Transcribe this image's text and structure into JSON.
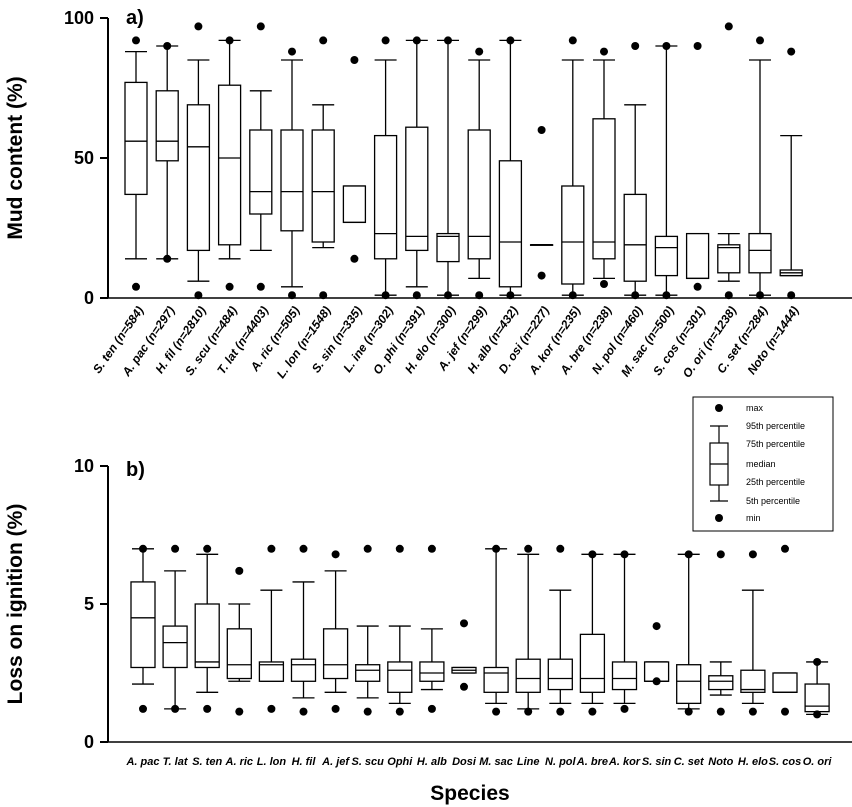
{
  "chart_data": [
    {
      "type": "box",
      "panel_label": "a)",
      "ylabel": "Mud content (%)",
      "xlabel": "",
      "ylim": [
        0,
        100
      ],
      "yticks": [
        "0",
        "50",
        "100"
      ],
      "categories": [
        "S. ten (n=584)",
        "A. pac (n=297)",
        "H. fil (n=2810)",
        "S. scu (n=484)",
        "T. lat (n=4403)",
        "A. ric (n=505)",
        "L. lon (n=1548)",
        "S. sin (n=335)",
        "L. ine (n=302)",
        "O. phi (n=391)",
        "H. elo (n=300)",
        "A. jef (n=299)",
        "H. alb (n=432)",
        "D. osi (n=227)",
        "A. kor (n=235)",
        "A. bre (n=238)",
        "N. pol (n=460)",
        "M. sac (n=500)",
        "S. cos (n=301)",
        "O. ori (n=1238)",
        "C. set (n=284)",
        "Noto (n=1444)"
      ],
      "boxes": [
        {
          "min": 4,
          "p5": 14,
          "q1": 37,
          "median": 56,
          "q3": 77,
          "p95": 88,
          "max": 92
        },
        {
          "min": 14,
          "p5": 14,
          "q1": 49,
          "median": 56,
          "q3": 74,
          "p95": 90,
          "max": 90
        },
        {
          "min": 1,
          "p5": 6,
          "q1": 17,
          "median": 54,
          "q3": 69,
          "p95": 85,
          "max": 97
        },
        {
          "min": 4,
          "p5": 14,
          "q1": 19,
          "median": 50,
          "q3": 76,
          "p95": 92,
          "max": 92
        },
        {
          "min": 4,
          "p5": 17,
          "q1": 30,
          "median": 38,
          "q3": 60,
          "p95": 74,
          "max": 97
        },
        {
          "min": 1,
          "p5": 4,
          "q1": 24,
          "median": 38,
          "q3": 60,
          "p95": 85,
          "max": 88
        },
        {
          "min": 1,
          "p5": 18,
          "q1": 20,
          "median": 38,
          "q3": 60,
          "p95": 69,
          "max": 92
        },
        {
          "min": 14,
          "p5": 27,
          "q1": 27,
          "median": 27,
          "q3": 40,
          "p95": 40,
          "max": 85
        },
        {
          "min": 1,
          "p5": 1,
          "q1": 14,
          "median": 23,
          "q3": 58,
          "p95": 85,
          "max": 92
        },
        {
          "min": 1,
          "p5": 4,
          "q1": 17,
          "median": 22,
          "q3": 61,
          "p95": 92,
          "max": 92
        },
        {
          "min": 1,
          "p5": 1,
          "q1": 13,
          "median": 22,
          "q3": 23,
          "p95": 92,
          "max": 92
        },
        {
          "min": 1,
          "p5": 7,
          "q1": 14,
          "median": 22,
          "q3": 60,
          "p95": 85,
          "max": 88
        },
        {
          "min": 1,
          "p5": 1,
          "q1": 4,
          "median": 20,
          "q3": 49,
          "p95": 92,
          "max": 92
        },
        {
          "min": 8,
          "p5": 19,
          "q1": 19,
          "median": 19,
          "q3": 19,
          "p95": 19,
          "max": 60
        },
        {
          "min": 1,
          "p5": 1,
          "q1": 5,
          "median": 20,
          "q3": 40,
          "p95": 85,
          "max": 92
        },
        {
          "min": 5,
          "p5": 7,
          "q1": 14,
          "median": 20,
          "q3": 64,
          "p95": 85,
          "max": 88
        },
        {
          "min": 1,
          "p5": 1,
          "q1": 6,
          "median": 19,
          "q3": 37,
          "p95": 69,
          "max": 90
        },
        {
          "min": 1,
          "p5": 1,
          "q1": 8,
          "median": 18,
          "q3": 22,
          "p95": 90,
          "max": 90
        },
        {
          "min": 4,
          "p5": 7,
          "q1": 7,
          "median": 7,
          "q3": 23,
          "p95": 23,
          "max": 90
        },
        {
          "min": 1,
          "p5": 6,
          "q1": 9,
          "median": 18,
          "q3": 19,
          "p95": 23,
          "max": 97
        },
        {
          "min": 1,
          "p5": 1,
          "q1": 9,
          "median": 17,
          "q3": 23,
          "p95": 85,
          "max": 92
        },
        {
          "min": 1,
          "p5": 8,
          "q1": 8,
          "median": 9,
          "q3": 10,
          "p95": 58,
          "max": 88
        }
      ]
    },
    {
      "type": "box",
      "panel_label": "b)",
      "ylabel": "Loss on ignition (%)",
      "xlabel": "Species",
      "ylim": [
        0,
        10
      ],
      "yticks": [
        "0",
        "5",
        "10"
      ],
      "categories": [
        "A. pac",
        "T. lat",
        "S. ten",
        "A. ric",
        "L. lon",
        "H. fil",
        "A. jef",
        "S. scu",
        "Ophi",
        "H. alb",
        "Dosi",
        "M. sac",
        "Line",
        "N. pol",
        "A. bre",
        "A. kor",
        "S. sin",
        "C. set",
        "Noto",
        "H. elo",
        "S. cos",
        "O. ori"
      ],
      "boxes": [
        {
          "min": 1.2,
          "p5": 2.1,
          "q1": 2.7,
          "median": 4.5,
          "q3": 5.8,
          "p95": 7.0,
          "max": 7.0
        },
        {
          "min": 1.2,
          "p5": 1.2,
          "q1": 2.7,
          "median": 3.6,
          "q3": 4.2,
          "p95": 6.2,
          "max": 7.0
        },
        {
          "min": 1.2,
          "p5": 1.8,
          "q1": 2.7,
          "median": 2.9,
          "q3": 5.0,
          "p95": 6.8,
          "max": 7.0
        },
        {
          "min": 1.1,
          "p5": 2.2,
          "q1": 2.3,
          "median": 2.8,
          "q3": 4.1,
          "p95": 5.0,
          "max": 6.2
        },
        {
          "min": 1.2,
          "p5": 2.2,
          "q1": 2.2,
          "median": 2.8,
          "q3": 2.9,
          "p95": 5.5,
          "max": 7.0
        },
        {
          "min": 1.1,
          "p5": 1.6,
          "q1": 2.2,
          "median": 2.8,
          "q3": 3.0,
          "p95": 5.8,
          "max": 7.0
        },
        {
          "min": 1.2,
          "p5": 1.8,
          "q1": 2.3,
          "median": 2.8,
          "q3": 4.1,
          "p95": 6.2,
          "max": 6.8
        },
        {
          "min": 1.1,
          "p5": 1.6,
          "q1": 2.2,
          "median": 2.6,
          "q3": 2.8,
          "p95": 4.2,
          "max": 7.0
        },
        {
          "min": 1.1,
          "p5": 1.4,
          "q1": 1.8,
          "median": 2.6,
          "q3": 2.9,
          "p95": 4.2,
          "max": 7.0
        },
        {
          "min": 1.2,
          "p5": 1.9,
          "q1": 2.2,
          "median": 2.5,
          "q3": 2.9,
          "p95": 4.1,
          "max": 7.0
        },
        {
          "min": 2.0,
          "p5": 2.5,
          "q1": 2.5,
          "median": 2.6,
          "q3": 2.7,
          "p95": 2.7,
          "max": 4.3
        },
        {
          "min": 1.1,
          "p5": 1.4,
          "q1": 1.8,
          "median": 2.5,
          "q3": 2.7,
          "p95": 7.0,
          "max": 7.0
        },
        {
          "min": 1.1,
          "p5": 1.2,
          "q1": 1.8,
          "median": 2.3,
          "q3": 3.0,
          "p95": 6.8,
          "max": 7.0
        },
        {
          "min": 1.1,
          "p5": 1.4,
          "q1": 1.9,
          "median": 2.3,
          "q3": 3.0,
          "p95": 5.5,
          "max": 7.0
        },
        {
          "min": 1.1,
          "p5": 1.4,
          "q1": 1.8,
          "median": 2.3,
          "q3": 3.9,
          "p95": 6.8,
          "max": 6.8
        },
        {
          "min": 1.2,
          "p5": 1.4,
          "q1": 1.9,
          "median": 2.3,
          "q3": 2.9,
          "p95": 6.8,
          "max": 6.8
        },
        {
          "min": 2.2,
          "p5": 2.2,
          "q1": 2.2,
          "median": 2.2,
          "q3": 2.9,
          "p95": 2.9,
          "max": 4.2
        },
        {
          "min": 1.1,
          "p5": 1.2,
          "q1": 1.4,
          "median": 2.2,
          "q3": 2.8,
          "p95": 6.8,
          "max": 6.8
        },
        {
          "min": 1.1,
          "p5": 1.7,
          "q1": 1.9,
          "median": 2.2,
          "q3": 2.4,
          "p95": 2.9,
          "max": 6.8
        },
        {
          "min": 1.1,
          "p5": 1.4,
          "q1": 1.8,
          "median": 1.9,
          "q3": 2.6,
          "p95": 5.5,
          "max": 6.8
        },
        {
          "min": 1.1,
          "p5": 1.8,
          "q1": 1.8,
          "median": 1.8,
          "q3": 2.5,
          "p95": 2.5,
          "max": 7.0
        },
        {
          "min": 1.0,
          "p5": 1.0,
          "q1": 1.1,
          "median": 1.3,
          "q3": 2.1,
          "p95": 2.9,
          "max": 2.9
        }
      ]
    }
  ],
  "legend": {
    "placement": "top-right of panel b",
    "items": [
      "max",
      "95th percentile",
      "75th percentile",
      "median",
      "25th percentile",
      "5th percentile",
      "min"
    ]
  }
}
